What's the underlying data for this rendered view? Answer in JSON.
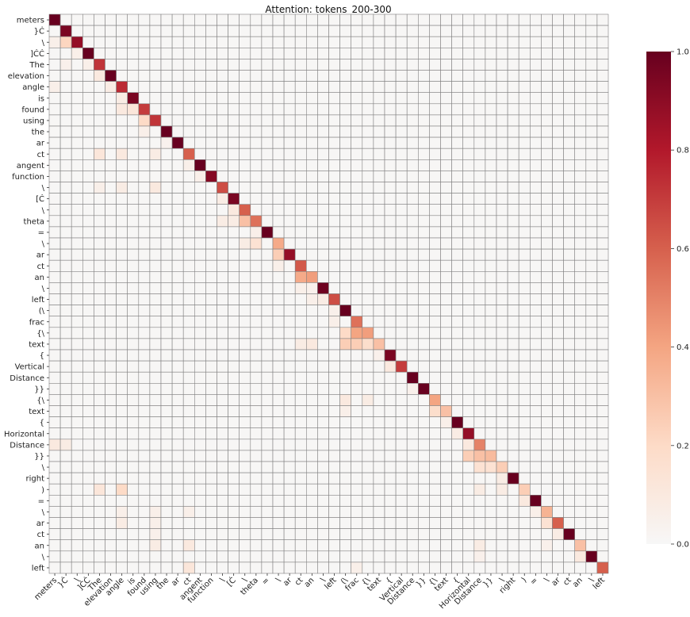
{
  "chart_data": {
    "type": "heatmap",
    "title": "Attention: tokens_200-300",
    "tokens": [
      "meters",
      "}Ċ",
      "\\",
      "]ĊĊ",
      "The",
      "elevation",
      "angle",
      "is",
      "found",
      "using",
      "the",
      "ar",
      "ct",
      "angent",
      "function",
      "\\",
      "[Ċ",
      "\\",
      "theta",
      "=",
      "\\",
      "ar",
      "ct",
      "an",
      "\\",
      "left",
      "(\\",
      "frac",
      "{\\",
      "text",
      "{",
      "Vertical",
      "Distance",
      "}}",
      "{\\",
      "text",
      "{",
      "Horizontal",
      "Distance",
      "}}",
      "\\",
      "right",
      ")",
      "=",
      "\\",
      "ar",
      "ct",
      "an",
      "\\",
      "left"
    ],
    "diagonal": [
      1.0,
      0.95,
      0.88,
      1.0,
      0.72,
      1.0,
      0.75,
      0.95,
      0.7,
      0.72,
      1.0,
      1.0,
      0.6,
      1.0,
      0.92,
      0.65,
      0.95,
      0.6,
      0.55,
      1.0,
      0.38,
      0.88,
      0.62,
      0.42,
      0.98,
      0.65,
      1.0,
      0.55,
      0.42,
      0.3,
      0.95,
      0.7,
      1.0,
      1.0,
      0.4,
      0.3,
      1.0,
      0.88,
      0.5,
      0.32,
      0.25,
      1.0,
      0.25,
      1.0,
      0.35,
      0.6,
      1.0,
      0.3,
      1.0,
      0.6
    ],
    "offdiagonal": [
      [
        2,
        1,
        0.22
      ],
      [
        4,
        3,
        0.06
      ],
      [
        6,
        5,
        0.08
      ],
      [
        7,
        6,
        0.08
      ],
      [
        8,
        7,
        0.12
      ],
      [
        9,
        8,
        0.2
      ],
      [
        5,
        4,
        0.1
      ],
      [
        4,
        1,
        0.05
      ],
      [
        6,
        0,
        0.06
      ],
      [
        8,
        6,
        0.1
      ],
      [
        12,
        4,
        0.12
      ],
      [
        12,
        6,
        0.1
      ],
      [
        12,
        9,
        0.08
      ],
      [
        15,
        4,
        0.06
      ],
      [
        15,
        6,
        0.08
      ],
      [
        15,
        9,
        0.1
      ],
      [
        18,
        15,
        0.08
      ],
      [
        18,
        16,
        0.08
      ],
      [
        18,
        17,
        0.3
      ],
      [
        20,
        18,
        0.15
      ],
      [
        20,
        17,
        0.08
      ],
      [
        21,
        20,
        0.25
      ],
      [
        23,
        22,
        0.38
      ],
      [
        22,
        20,
        0.06
      ],
      [
        25,
        23,
        0.06
      ],
      [
        25,
        24,
        0.08
      ],
      [
        27,
        25,
        0.06
      ],
      [
        28,
        26,
        0.2
      ],
      [
        28,
        27,
        0.4
      ],
      [
        29,
        26,
        0.25
      ],
      [
        29,
        27,
        0.25
      ],
      [
        29,
        28,
        0.18
      ],
      [
        29,
        23,
        0.1
      ],
      [
        29,
        22,
        0.08
      ],
      [
        31,
        30,
        0.1
      ],
      [
        34,
        26,
        0.1
      ],
      [
        34,
        28,
        0.08
      ],
      [
        35,
        26,
        0.06
      ],
      [
        35,
        34,
        0.18
      ],
      [
        37,
        36,
        0.08
      ],
      [
        38,
        0,
        0.1
      ],
      [
        38,
        1,
        0.08
      ],
      [
        38,
        37,
        0.1
      ],
      [
        39,
        37,
        0.25
      ],
      [
        39,
        38,
        0.3
      ],
      [
        40,
        38,
        0.15
      ],
      [
        40,
        39,
        0.15
      ],
      [
        42,
        4,
        0.12
      ],
      [
        42,
        6,
        0.2
      ],
      [
        42,
        38,
        0.08
      ],
      [
        42,
        40,
        0.08
      ],
      [
        44,
        43,
        0.06
      ],
      [
        45,
        44,
        0.15
      ],
      [
        45,
        6,
        0.08
      ],
      [
        46,
        45,
        0.08
      ],
      [
        47,
        9,
        0.08
      ],
      [
        47,
        12,
        0.1
      ],
      [
        47,
        38,
        0.08
      ],
      [
        47,
        44,
        0.05
      ],
      [
        49,
        12,
        0.12
      ],
      [
        49,
        27,
        0.06
      ],
      [
        48,
        38,
        0.05
      ],
      [
        44,
        9,
        0.06
      ],
      [
        44,
        6,
        0.06
      ],
      [
        44,
        12,
        0.06
      ],
      [
        45,
        9,
        0.06
      ],
      [
        46,
        9,
        0.05
      ],
      [
        33,
        32,
        0.05
      ],
      [
        30,
        29,
        0.05
      ],
      [
        26,
        25,
        0.05
      ],
      [
        24,
        23,
        0.05
      ],
      [
        24,
        22,
        0.06
      ],
      [
        2,
        0,
        0.06
      ],
      [
        3,
        2,
        0.06
      ],
      [
        10,
        8,
        0.06
      ],
      [
        11,
        10,
        0.04
      ],
      [
        13,
        12,
        0.06
      ],
      [
        14,
        13,
        0.06
      ],
      [
        16,
        15,
        0.08
      ],
      [
        17,
        16,
        0.1
      ],
      [
        19,
        18,
        0.06
      ],
      [
        36,
        35,
        0.06
      ],
      [
        41,
        40,
        0.08
      ],
      [
        43,
        42,
        0.1
      ],
      [
        48,
        47,
        0.1
      ]
    ],
    "colorbar": {
      "min": 0.0,
      "max": 1.0,
      "ticks": [
        "0.0",
        "0.2",
        "0.4",
        "0.6",
        "0.8",
        "1.0"
      ]
    },
    "colormap": [
      "#f7f7f7",
      "#fddbc7",
      "#f4a582",
      "#d6604d",
      "#b2182b",
      "#67001f"
    ],
    "gridline_color": "#808080"
  }
}
